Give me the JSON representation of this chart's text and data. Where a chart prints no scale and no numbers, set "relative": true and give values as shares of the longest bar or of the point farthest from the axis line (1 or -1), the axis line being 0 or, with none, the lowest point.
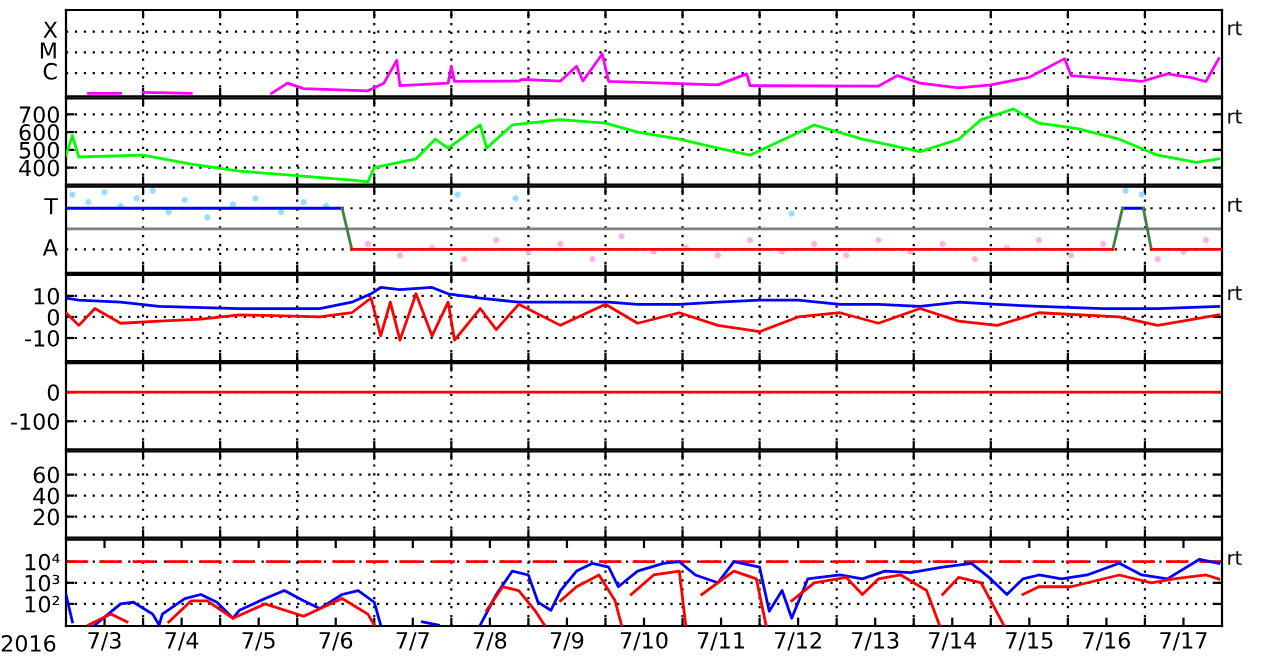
{
  "chart_data": [
    {
      "type": "line",
      "annotations": [
        "rt"
      ],
      "relative": true,
      "grid": true,
      "tick_labels": "y",
      "xlim": [
        "2016-07-03",
        "2016-07-18"
      ],
      "xticks": [
        {
          "value": "2016-07-04",
          "label": null
        },
        {
          "value": "2016-07-05",
          "label": null
        },
        {
          "value": "2016-07-06",
          "label": null
        },
        {
          "value": "2016-07-07",
          "label": null
        },
        {
          "value": "2016-07-08",
          "label": null
        },
        {
          "value": "2016-07-09",
          "label": null
        },
        {
          "value": "2016-07-10",
          "label": null
        },
        {
          "value": "2016-07-11",
          "label": null
        },
        {
          "value": "2016-07-12",
          "label": null
        },
        {
          "value": "2016-07-13",
          "label": null
        },
        {
          "value": "2016-07-14",
          "label": null
        },
        {
          "value": "2016-07-15",
          "label": null
        },
        {
          "value": "2016-07-16",
          "label": null
        },
        {
          "value": "2016-07-17",
          "label": null
        }
      ],
      "ylim": [
        0,
        2.04
      ],
      "ref_lines": [
        {
          "axis": "y",
          "value": 0.545,
          "label": "C",
          "color": "#000000",
          "line_style": "dotted"
        },
        {
          "axis": "y",
          "value": 1.036,
          "label": "M",
          "color": "#000000",
          "line_style": "dotted"
        },
        {
          "axis": "y",
          "value": 1.527,
          "label": "X",
          "color": "#000000",
          "line_style": "dotted"
        }
      ],
      "series": [
        {
          "color": "#ff00ff",
          "x": [
            "2016-07-03T07:00",
            "2016-07-03T17:00"
          ],
          "values": [
            0.07,
            0.07
          ]
        },
        {
          "color": "#ff00ff",
          "x": [
            "2016-07-04T00:00",
            "2016-07-04T15:00"
          ],
          "values": [
            0.09,
            0.07
          ]
        },
        {
          "color": "#ff00ff",
          "x": [
            "2016-07-05T16:00",
            "2016-07-05T21:00",
            "2016-07-06T02:00",
            "2016-07-06T22:00",
            "2016-07-07T03:00",
            "2016-07-07T07:00",
            "2016-07-07T08:00",
            "2016-07-07T23:00",
            "2016-07-08T00:00",
            "2016-07-08T01:00",
            "2016-07-08T21:00",
            "2016-07-08T22:00",
            "2016-07-09T10:00",
            "2016-07-09T15:00",
            "2016-07-09T17:00",
            "2016-07-09T23:00",
            "2016-07-10T01:00",
            "2016-07-11T11:00",
            "2016-07-11T20:00",
            "2016-07-11T21:00",
            "2016-07-13T13:00",
            "2016-07-13T19:00",
            "2016-07-14T02:00",
            "2016-07-14T14:00",
            "2016-07-15T00:00",
            "2016-07-15T12:00",
            "2016-07-15T23:00",
            "2016-07-16T01:00",
            "2016-07-16T16:00",
            "2016-07-16T23:00",
            "2016-07-17T07:00",
            "2016-07-17T14:00",
            "2016-07-17T19:00",
            "2016-07-17T23:00"
          ],
          "values": [
            0.07,
            0.31,
            0.18,
            0.13,
            0.31,
            0.85,
            0.25,
            0.31,
            0.71,
            0.35,
            0.36,
            0.4,
            0.36,
            0.71,
            0.36,
            1,
            0.35,
            0.27,
            0.53,
            0.25,
            0.24,
            0.49,
            0.31,
            0.2,
            0.27,
            0.45,
            0.89,
            0.49,
            0.4,
            0.35,
            0.53,
            0.45,
            0.35,
            0.89
          ]
        }
      ]
    },
    {
      "type": "line",
      "annotations": [
        "rt"
      ],
      "grid": true,
      "tick_labels": "y",
      "xlim": [
        "2016-07-03",
        "2016-07-18"
      ],
      "xticks": [
        {
          "value": "2016-07-04",
          "label": null
        },
        {
          "value": "2016-07-05",
          "label": null
        },
        {
          "value": "2016-07-06",
          "label": null
        },
        {
          "value": "2016-07-07",
          "label": null
        },
        {
          "value": "2016-07-08",
          "label": null
        },
        {
          "value": "2016-07-09",
          "label": null
        },
        {
          "value": "2016-07-10",
          "label": null
        },
        {
          "value": "2016-07-11",
          "label": null
        },
        {
          "value": "2016-07-12",
          "label": null
        },
        {
          "value": "2016-07-13",
          "label": null
        },
        {
          "value": "2016-07-14",
          "label": null
        },
        {
          "value": "2016-07-15",
          "label": null
        },
        {
          "value": "2016-07-16",
          "label": null
        },
        {
          "value": "2016-07-17",
          "label": null
        }
      ],
      "ylim": [
        305,
        790
      ],
      "yticks": [
        400,
        500,
        600,
        700
      ],
      "series": [
        {
          "color": "#00ff00",
          "x": [
            "2016-07-03T00:00",
            "2016-07-03T02:00",
            "2016-07-03T04:00",
            "2016-07-04T00:00",
            "2016-07-04T15:00",
            "2016-07-05T06:00",
            "2016-07-05T21:00",
            "2016-07-06T17:00",
            "2016-07-06T22:00",
            "2016-07-07T00:00",
            "2016-07-07T13:00",
            "2016-07-07T19:00",
            "2016-07-07T23:00",
            "2016-07-08T09:00",
            "2016-07-08T11:00",
            "2016-07-08T19:00",
            "2016-07-09T10:00",
            "2016-07-10T00:00",
            "2016-07-10T10:00",
            "2016-07-10T23:00",
            "2016-07-11T11:00",
            "2016-07-11T21:00",
            "2016-07-12T10:00",
            "2016-07-12T17:00",
            "2016-07-13T08:00",
            "2016-07-14T02:00",
            "2016-07-14T14:00",
            "2016-07-14T21:00",
            "2016-07-15T07:00",
            "2016-07-15T15:00",
            "2016-07-16T03:00",
            "2016-07-16T16:00",
            "2016-07-17T04:00",
            "2016-07-17T16:00",
            "2016-07-17T23:00"
          ],
          "values": [
            470,
            580,
            460,
            470,
            420,
            380,
            360,
            330,
            320,
            400,
            450,
            560,
            510,
            640,
            510,
            640,
            670,
            650,
            600,
            560,
            510,
            470,
            580,
            640,
            560,
            490,
            560,
            670,
            730,
            650,
            620,
            560,
            470,
            430,
            450
          ]
        }
      ]
    },
    {
      "type": "line",
      "annotations": [
        "rt"
      ],
      "relative": true,
      "grid": true,
      "tick_labels": "y",
      "xlim": [
        "2016-07-03",
        "2016-07-18"
      ],
      "xticks": [
        {
          "value": "2016-07-04",
          "label": null
        },
        {
          "value": "2016-07-05",
          "label": null
        },
        {
          "value": "2016-07-06",
          "label": null
        },
        {
          "value": "2016-07-07",
          "label": null
        },
        {
          "value": "2016-07-08",
          "label": null
        },
        {
          "value": "2016-07-09",
          "label": null
        },
        {
          "value": "2016-07-10",
          "label": null
        },
        {
          "value": "2016-07-11",
          "label": null
        },
        {
          "value": "2016-07-12",
          "label": null
        },
        {
          "value": "2016-07-13",
          "label": null
        },
        {
          "value": "2016-07-14",
          "label": null
        },
        {
          "value": "2016-07-15",
          "label": null
        },
        {
          "value": "2016-07-16",
          "label": null
        },
        {
          "value": "2016-07-17",
          "label": null
        }
      ],
      "ylim": [
        -1.16,
        1.11
      ],
      "ref_lines": [
        {
          "axis": "y",
          "value": 0,
          "label": null,
          "color": "#808080"
        },
        {
          "axis": "y",
          "value": -0.54,
          "label": "A",
          "color": "#000000",
          "line_style": "dotted"
        },
        {
          "axis": "y",
          "value": 0.54,
          "label": "T",
          "color": "#000000",
          "line_style": "dotted"
        }
      ],
      "series": [
        {
          "type": "scatter",
          "color": "#99ddff",
          "x": [
            "2016-07-03T02:00",
            "2016-07-03T07:00",
            "2016-07-03T12:00",
            "2016-07-03T17:00",
            "2016-07-03T22:00",
            "2016-07-04T03:00",
            "2016-07-04T08:00",
            "2016-07-04T13:00",
            "2016-07-04T20:00",
            "2016-07-05T04:00",
            "2016-07-05T11:00",
            "2016-07-05T19:00",
            "2016-07-06T02:00",
            "2016-07-06T09:00",
            "2016-07-08T02:00",
            "2016-07-08T20:00",
            "2016-07-12T10:00",
            "2016-07-16T18:00",
            "2016-07-16T23:00"
          ],
          "values": [
            0.9,
            0.7,
            0.96,
            0.6,
            0.8,
            1,
            0.44,
            0.76,
            0.3,
            0.64,
            0.8,
            0.44,
            0.7,
            0.6,
            0.9,
            0.8,
            0.4,
            1,
            0.9
          ]
        },
        {
          "type": "scatter",
          "color": "#ffb3e6",
          "x": [
            "2016-07-06T22:00",
            "2016-07-07T08:00",
            "2016-07-07T18:00",
            "2016-07-08T04:00",
            "2016-07-08T14:00",
            "2016-07-09T00:00",
            "2016-07-09T10:00",
            "2016-07-09T20:00",
            "2016-07-10T05:00",
            "2016-07-10T15:00",
            "2016-07-11T01:00",
            "2016-07-11T11:00",
            "2016-07-11T21:00",
            "2016-07-12T07:00",
            "2016-07-12T17:00",
            "2016-07-13T03:00",
            "2016-07-13T13:00",
            "2016-07-13T23:00",
            "2016-07-14T09:00",
            "2016-07-14T19:00",
            "2016-07-15T05:00",
            "2016-07-15T15:00",
            "2016-07-16T01:00",
            "2016-07-16T11:00",
            "2016-07-17T04:00",
            "2016-07-17T12:00",
            "2016-07-17T19:00"
          ],
          "values": [
            -0.4,
            -0.7,
            -0.5,
            -0.8,
            -0.3,
            -0.6,
            -0.4,
            -0.8,
            -0.2,
            -0.6,
            -0.5,
            -0.7,
            -0.3,
            -0.6,
            -0.4,
            -0.7,
            -0.3,
            -0.6,
            -0.4,
            -0.8,
            -0.5,
            -0.3,
            -0.7,
            -0.4,
            -0.8,
            -0.6,
            -0.3
          ]
        },
        {
          "color": "#0000ff",
          "x": [
            "2016-07-03T00:00",
            "2016-07-06T14:00"
          ],
          "values": [
            0.54,
            0.54
          ]
        },
        {
          "color": "#0000ff",
          "x": [
            "2016-07-16T17:00",
            "2016-07-16T23:30"
          ],
          "values": [
            0.54,
            0.54
          ]
        },
        {
          "color": "#408040",
          "x": [
            "2016-07-06T14:00",
            "2016-07-06T17:00"
          ],
          "values": [
            0.54,
            -0.54
          ]
        },
        {
          "color": "#408040",
          "x": [
            "2016-07-16T14:00",
            "2016-07-16T17:00"
          ],
          "values": [
            -0.54,
            0.54
          ]
        },
        {
          "color": "#408040",
          "x": [
            "2016-07-16T23:30",
            "2016-07-17T02:00"
          ],
          "values": [
            0.54,
            -0.54
          ]
        },
        {
          "color": "#ff0000",
          "x": [
            "2016-07-06T17:00",
            "2016-07-16T14:00"
          ],
          "values": [
            -0.54,
            -0.54
          ]
        },
        {
          "color": "#ff0000",
          "x": [
            "2016-07-17T02:00",
            "2016-07-18T00:00"
          ],
          "values": [
            -0.54,
            -0.54
          ]
        }
      ]
    },
    {
      "type": "line",
      "annotations": [
        "rt"
      ],
      "grid": true,
      "tick_labels": "y",
      "xlim": [
        "2016-07-03",
        "2016-07-18"
      ],
      "xticks": [
        {
          "value": "2016-07-04",
          "label": null
        },
        {
          "value": "2016-07-05",
          "label": null
        },
        {
          "value": "2016-07-06",
          "label": null
        },
        {
          "value": "2016-07-07",
          "label": null
        },
        {
          "value": "2016-07-08",
          "label": null
        },
        {
          "value": "2016-07-09",
          "label": null
        },
        {
          "value": "2016-07-10",
          "label": null
        },
        {
          "value": "2016-07-11",
          "label": null
        },
        {
          "value": "2016-07-12",
          "label": null
        },
        {
          "value": "2016-07-13",
          "label": null
        },
        {
          "value": "2016-07-14",
          "label": null
        },
        {
          "value": "2016-07-15",
          "label": null
        },
        {
          "value": "2016-07-16",
          "label": null
        },
        {
          "value": "2016-07-17",
          "label": null
        }
      ],
      "ylim": [
        -21,
        20
      ],
      "yticks": [
        -10,
        0,
        10
      ],
      "series": [
        {
          "color": "#0000ff",
          "x": [
            "2016-07-03T00:00",
            "2016-07-03T04:00",
            "2016-07-03T17:00",
            "2016-07-04T05:00",
            "2016-07-05T06:00",
            "2016-07-06T07:00",
            "2016-07-06T17:00",
            "2016-07-06T23:00",
            "2016-07-07T02:00",
            "2016-07-07T08:00",
            "2016-07-07T18:00",
            "2016-07-07T23:00",
            "2016-07-08T09:00",
            "2016-07-08T21:00",
            "2016-07-09T10:00",
            "2016-07-10T01:00",
            "2016-07-10T10:00",
            "2016-07-10T23:00",
            "2016-07-11T11:00",
            "2016-07-12T00:00",
            "2016-07-12T12:00",
            "2016-07-13T01:00",
            "2016-07-13T13:00",
            "2016-07-14T02:00",
            "2016-07-14T14:00",
            "2016-07-15T02:00",
            "2016-07-15T15:00",
            "2016-07-16T11:00",
            "2016-07-17T04:00",
            "2016-07-17T23:00"
          ],
          "values": [
            9,
            8,
            7,
            5,
            4,
            4,
            7,
            11,
            14,
            13,
            14,
            11,
            9,
            7,
            7,
            7,
            6,
            6,
            7,
            8,
            8,
            6,
            6,
            5,
            7,
            6,
            5,
            4,
            4,
            5
          ]
        },
        {
          "color": "#ff0000",
          "x": [
            "2016-07-03T00:00",
            "2016-07-03T04:00",
            "2016-07-03T09:00",
            "2016-07-03T17:00",
            "2016-07-04T05:00",
            "2016-07-04T18:00",
            "2016-07-05T06:00",
            "2016-07-06T07:00",
            "2016-07-06T17:00",
            "2016-07-06T23:00",
            "2016-07-07T02:00",
            "2016-07-07T05:00",
            "2016-07-07T08:00",
            "2016-07-07T13:00",
            "2016-07-07T18:00",
            "2016-07-07T23:00",
            "2016-07-08T01:00",
            "2016-07-08T09:00",
            "2016-07-08T14:00",
            "2016-07-08T21:00",
            "2016-07-09T10:00",
            "2016-07-10T00:00",
            "2016-07-10T10:00",
            "2016-07-10T23:00",
            "2016-07-11T11:00",
            "2016-07-12T00:00",
            "2016-07-12T12:00",
            "2016-07-13T01:00",
            "2016-07-13T13:00",
            "2016-07-14T02:00",
            "2016-07-14T14:00",
            "2016-07-15T02:00",
            "2016-07-15T15:00",
            "2016-07-16T16:00",
            "2016-07-17T04:00",
            "2016-07-17T23:00"
          ],
          "values": [
            2,
            -4,
            4,
            -3,
            -2,
            -1,
            1,
            0,
            2,
            9,
            -9,
            7,
            -11,
            11,
            -9,
            7,
            -11,
            4,
            -6,
            6,
            -4,
            6,
            -3,
            2,
            -4,
            -7,
            0,
            2,
            -3,
            4,
            -2,
            -4,
            2,
            0,
            -4,
            1
          ]
        }
      ]
    },
    {
      "type": "line",
      "grid": true,
      "tick_labels": "y",
      "xlim": [
        "2016-07-03",
        "2016-07-18"
      ],
      "xticks": [
        {
          "value": "2016-07-04",
          "label": null
        },
        {
          "value": "2016-07-05",
          "label": null
        },
        {
          "value": "2016-07-06",
          "label": null
        },
        {
          "value": "2016-07-07",
          "label": null
        },
        {
          "value": "2016-07-08",
          "label": null
        },
        {
          "value": "2016-07-09",
          "label": null
        },
        {
          "value": "2016-07-10",
          "label": null
        },
        {
          "value": "2016-07-11",
          "label": null
        },
        {
          "value": "2016-07-12",
          "label": null
        },
        {
          "value": "2016-07-13",
          "label": null
        },
        {
          "value": "2016-07-14",
          "label": null
        },
        {
          "value": "2016-07-15",
          "label": null
        },
        {
          "value": "2016-07-16",
          "label": null
        },
        {
          "value": "2016-07-17",
          "label": null
        }
      ],
      "ylim": [
        -197,
        100
      ],
      "yticks": [
        -100,
        0
      ],
      "ref_lines": [
        {
          "axis": "y",
          "value": 0,
          "label": null,
          "color": "#ff0000"
        }
      ]
    },
    {
      "type": "line",
      "grid": true,
      "tick_labels": "y",
      "xlim": [
        "2016-07-03",
        "2016-07-18"
      ],
      "xticks": [
        {
          "value": "2016-07-04",
          "label": null
        },
        {
          "value": "2016-07-05",
          "label": null
        },
        {
          "value": "2016-07-06",
          "label": null
        },
        {
          "value": "2016-07-07",
          "label": null
        },
        {
          "value": "2016-07-08",
          "label": null
        },
        {
          "value": "2016-07-09",
          "label": null
        },
        {
          "value": "2016-07-10",
          "label": null
        },
        {
          "value": "2016-07-11",
          "label": null
        },
        {
          "value": "2016-07-12",
          "label": null
        },
        {
          "value": "2016-07-13",
          "label": null
        },
        {
          "value": "2016-07-14",
          "label": null
        },
        {
          "value": "2016-07-15",
          "label": null
        },
        {
          "value": "2016-07-16",
          "label": null
        },
        {
          "value": "2016-07-17",
          "label": null
        }
      ],
      "ylim": [
        0,
        82
      ],
      "yticks": [
        20,
        40,
        60
      ]
    },
    {
      "type": "line",
      "annotations": [
        "rt"
      ],
      "log": "y",
      "grid": true,
      "xlabel": "2016",
      "xlim": [
        "2016-07-03",
        "2016-07-18"
      ],
      "xticks": [
        {
          "value": "2016-07-04",
          "label": null
        },
        {
          "value": "2016-07-05",
          "label": null
        },
        {
          "value": "2016-07-06",
          "label": null
        },
        {
          "value": "2016-07-07",
          "label": null
        },
        {
          "value": "2016-07-08",
          "label": null
        },
        {
          "value": "2016-07-09",
          "label": null
        },
        {
          "value": "2016-07-10",
          "label": null
        },
        {
          "value": "2016-07-11",
          "label": null
        },
        {
          "value": "2016-07-12",
          "label": null
        },
        {
          "value": "2016-07-13",
          "label": null
        },
        {
          "value": "2016-07-14",
          "label": null
        },
        {
          "value": "2016-07-15",
          "label": null
        },
        {
          "value": "2016-07-16",
          "label": null
        },
        {
          "value": "2016-07-17",
          "label": null
        },
        {
          "value": "2016-07-03T12:00",
          "label": "7/3"
        },
        {
          "value": "2016-07-04T12:00",
          "label": "7/4"
        },
        {
          "value": "2016-07-05T12:00",
          "label": "7/5"
        },
        {
          "value": "2016-07-06T12:00",
          "label": "7/6"
        },
        {
          "value": "2016-07-07T12:00",
          "label": "7/7"
        },
        {
          "value": "2016-07-08T12:00",
          "label": "7/8"
        },
        {
          "value": "2016-07-09T12:00",
          "label": "7/9"
        },
        {
          "value": "2016-07-10T12:00",
          "label": "7/10"
        },
        {
          "value": "2016-07-11T12:00",
          "label": "7/11"
        },
        {
          "value": "2016-07-12T12:00",
          "label": "7/12"
        },
        {
          "value": "2016-07-13T12:00",
          "label": "7/13"
        },
        {
          "value": "2016-07-14T12:00",
          "label": "7/14"
        },
        {
          "value": "2016-07-15T12:00",
          "label": "7/15"
        },
        {
          "value": "2016-07-16T12:00",
          "label": "7/16"
        },
        {
          "value": "2016-07-17T12:00",
          "label": "7/17"
        }
      ],
      "ylim": [
        9,
        110000
      ],
      "yticks": [
        {
          "value": 100,
          "label": "10²"
        },
        {
          "value": 1000,
          "label": "10³"
        },
        {
          "value": 10000,
          "label": "10⁴"
        }
      ],
      "ref_lines": [
        {
          "axis": "y",
          "value": 10000,
          "label": null,
          "color": "#ff0000",
          "line_style": "dashed"
        }
      ],
      "series": [
        {
          "color": "#0000ff",
          "x": [
            "2016-07-03T00:00",
            "2016-07-03T02:00"
          ],
          "values": [
            280,
            14
          ]
        },
        {
          "color": "#0000ff",
          "x": [
            "2016-07-03T09:00",
            "2016-07-03T17:00",
            "2016-07-03T21:00",
            "2016-07-04T03:00",
            "2016-07-04T05:00",
            "2016-07-04T06:00",
            "2016-07-04T13:00",
            "2016-07-04T18:00",
            "2016-07-04T23:00",
            "2016-07-05T04:00",
            "2016-07-05T06:00",
            "2016-07-05T14:00",
            "2016-07-05T20:00",
            "2016-07-06T02:00",
            "2016-07-06T07:00",
            "2016-07-06T14:00",
            "2016-07-06T19:00",
            "2016-07-07T00:00",
            "2016-07-07T02:00"
          ],
          "values": [
            10,
            100,
            120,
            33,
            10,
            33,
            180,
            280,
            120,
            21,
            50,
            180,
            430,
            140,
            60,
            280,
            430,
            120,
            10
          ]
        },
        {
          "color": "#0000ff",
          "x": [
            "2016-07-07T15:00",
            "2016-07-07T20:00"
          ],
          "values": [
            14,
            10
          ]
        },
        {
          "color": "#0000ff",
          "x": [
            "2016-07-08T09:00",
            "2016-07-08T14:00",
            "2016-07-08T19:00",
            "2016-07-09T00:00",
            "2016-07-09T03:00",
            "2016-07-09T07:00",
            "2016-07-09T10:00",
            "2016-07-09T15:00",
            "2016-07-09T20:00",
            "2016-07-10T01:00",
            "2016-07-10T04:00",
            "2016-07-10T10:00",
            "2016-07-10T18:00",
            "2016-07-10T23:00",
            "2016-07-11T04:00",
            "2016-07-11T11:00",
            "2016-07-11T16:00",
            "2016-07-12T00:00",
            "2016-07-12T03:00",
            "2016-07-12T07:00",
            "2016-07-12T10:00",
            "2016-07-12T15:00",
            "2016-07-13T01:00",
            "2016-07-13T08:00",
            "2016-07-13T15:00",
            "2016-07-13T23:00",
            "2016-07-14T09:00",
            "2016-07-14T18:00",
            "2016-07-15T00:00",
            "2016-07-15T05:00",
            "2016-07-15T10:00",
            "2016-07-15T15:00",
            "2016-07-15T22:00",
            "2016-07-16T06:00",
            "2016-07-16T16:00",
            "2016-07-16T23:00",
            "2016-07-17T07:00",
            "2016-07-17T17:00",
            "2016-07-17T23:00"
          ],
          "values": [
            10,
            280,
            3600,
            2350,
            120,
            50,
            430,
            3600,
            8400,
            5500,
            650,
            3600,
            8400,
            10000,
            2350,
            1000,
            10000,
            5500,
            45,
            430,
            21,
            1530,
            2350,
            1530,
            3600,
            3000,
            5500,
            8400,
            1530,
            280,
            1530,
            2350,
            1530,
            2350,
            8400,
            2350,
            1530,
            13000,
            8400
          ]
        },
        {
          "color": "#ff0000",
          "x": [
            "2016-07-03T07:00",
            "2016-07-03T14:00",
            "2016-07-03T19:00"
          ],
          "values": [
            10,
            33,
            14
          ]
        },
        {
          "color": "#ff0000",
          "x": [
            "2016-07-04T08:00",
            "2016-07-04T15:00",
            "2016-07-04T20:00",
            "2016-07-05T04:00",
            "2016-07-05T14:00",
            "2016-07-06T02:00",
            "2016-07-06T14:00",
            "2016-07-06T22:00",
            "2016-07-07T00:00"
          ],
          "values": [
            14,
            140,
            140,
            21,
            100,
            26,
            180,
            33,
            10
          ]
        },
        {
          "color": "#ff0000",
          "x": [
            "2016-07-08T11:00",
            "2016-07-08T16:00",
            "2016-07-08T21:00",
            "2016-07-09T02:00",
            "2016-07-09T05:00"
          ],
          "values": [
            50,
            650,
            430,
            50,
            10
          ]
        },
        {
          "color": "#ff0000",
          "x": [
            "2016-07-09T10:00",
            "2016-07-09T15:00",
            "2016-07-09T22:00",
            "2016-07-10T03:00",
            "2016-07-10T05:00"
          ],
          "values": [
            140,
            650,
            2350,
            140,
            10
          ]
        },
        {
          "color": "#ff0000",
          "x": [
            "2016-07-10T08:00",
            "2016-07-10T15:00",
            "2016-07-10T23:00",
            "2016-07-11T01:00"
          ],
          "values": [
            280,
            2350,
            3600,
            10
          ]
        },
        {
          "color": "#ff0000",
          "x": [
            "2016-07-11T06:00",
            "2016-07-11T16:00",
            "2016-07-11T23:00",
            "2016-07-12T02:00"
          ],
          "values": [
            280,
            3600,
            1530,
            10
          ]
        },
        {
          "color": "#ff0000",
          "x": [
            "2016-07-12T10:00",
            "2016-07-12T17:00",
            "2016-07-13T03:00",
            "2016-07-13T08:00",
            "2016-07-13T13:00",
            "2016-07-13T20:00",
            "2016-07-14T04:00",
            "2016-07-14T08:00"
          ],
          "values": [
            140,
            1000,
            1800,
            280,
            1530,
            2350,
            430,
            10
          ]
        },
        {
          "color": "#ff0000",
          "x": [
            "2016-07-14T09:00",
            "2016-07-14T14:00",
            "2016-07-14T21:00",
            "2016-07-15T04:00"
          ],
          "values": [
            280,
            1800,
            1000,
            10
          ]
        },
        {
          "color": "#ff0000",
          "x": [
            "2016-07-15T10:00",
            "2016-07-15T15:00",
            "2016-07-16T01:00",
            "2016-07-16T16:00",
            "2016-07-17T02:00",
            "2016-07-17T09:00",
            "2016-07-17T19:00",
            "2016-07-17T23:00"
          ],
          "values": [
            280,
            650,
            650,
            2350,
            1000,
            1530,
            2350,
            1530
          ]
        }
      ]
    }
  ]
}
